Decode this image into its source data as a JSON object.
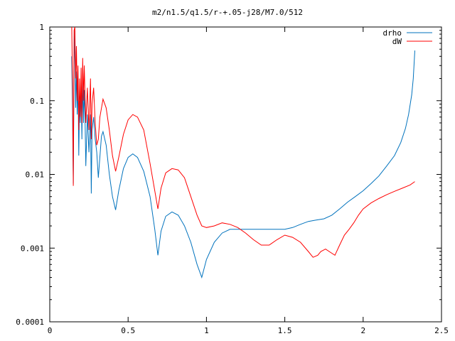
{
  "chart_data": {
    "type": "line",
    "title": "m2/n1.5/q1.5/r-+.05-j28/M7.0/512",
    "xlabel": "",
    "ylabel": "",
    "xlim": [
      0,
      2.5
    ],
    "ylim": [
      0.0001,
      1
    ],
    "yscale": "log",
    "grid": false,
    "legend_position": "top-right",
    "x_ticks": [
      0,
      0.5,
      1,
      1.5,
      2,
      2.5
    ],
    "x_tick_labels": [
      "0",
      "0.5",
      "1",
      "1.5",
      "2",
      "2.5"
    ],
    "y_ticks": [
      0.0001,
      0.001,
      0.01,
      0.1,
      1
    ],
    "y_tick_labels": [
      "0.0001",
      "0.001",
      "0.01",
      "0.1",
      "1"
    ],
    "series": [
      {
        "name": "drho",
        "color": "#0072bd",
        "points": [
          [
            0.14,
            0.4
          ],
          [
            0.145,
            0.07
          ],
          [
            0.15,
            0.0075
          ],
          [
            0.155,
            0.3
          ],
          [
            0.16,
            0.9
          ],
          [
            0.165,
            0.08
          ],
          [
            0.17,
            0.25
          ],
          [
            0.175,
            0.065
          ],
          [
            0.18,
            0.2
          ],
          [
            0.185,
            0.018
          ],
          [
            0.19,
            0.1
          ],
          [
            0.195,
            0.05
          ],
          [
            0.2,
            0.15
          ],
          [
            0.205,
            0.03
          ],
          [
            0.21,
            0.2
          ],
          [
            0.215,
            0.05
          ],
          [
            0.22,
            0.14
          ],
          [
            0.225,
            0.06
          ],
          [
            0.23,
            0.013
          ],
          [
            0.24,
            0.065
          ],
          [
            0.25,
            0.02
          ],
          [
            0.26,
            0.065
          ],
          [
            0.265,
            0.0055
          ],
          [
            0.27,
            0.04
          ],
          [
            0.28,
            0.06
          ],
          [
            0.29,
            0.03
          ],
          [
            0.3,
            0.02
          ],
          [
            0.31,
            0.009
          ],
          [
            0.33,
            0.033
          ],
          [
            0.34,
            0.038
          ],
          [
            0.36,
            0.025
          ],
          [
            0.38,
            0.01
          ],
          [
            0.4,
            0.005
          ],
          [
            0.42,
            0.0033
          ],
          [
            0.44,
            0.006
          ],
          [
            0.47,
            0.012
          ],
          [
            0.5,
            0.017
          ],
          [
            0.53,
            0.019
          ],
          [
            0.56,
            0.017
          ],
          [
            0.6,
            0.011
          ],
          [
            0.64,
            0.005
          ],
          [
            0.67,
            0.0018
          ],
          [
            0.69,
            0.0008
          ],
          [
            0.71,
            0.0017
          ],
          [
            0.74,
            0.0027
          ],
          [
            0.78,
            0.0031
          ],
          [
            0.82,
            0.0028
          ],
          [
            0.86,
            0.002
          ],
          [
            0.9,
            0.0012
          ],
          [
            0.94,
            0.0006
          ],
          [
            0.97,
            0.0004
          ],
          [
            1.0,
            0.0007
          ],
          [
            1.05,
            0.0012
          ],
          [
            1.1,
            0.0016
          ],
          [
            1.15,
            0.0018
          ],
          [
            1.2,
            0.0018
          ],
          [
            1.3,
            0.0018
          ],
          [
            1.4,
            0.0018
          ],
          [
            1.5,
            0.0018
          ],
          [
            1.55,
            0.0019
          ],
          [
            1.6,
            0.0021
          ],
          [
            1.65,
            0.0023
          ],
          [
            1.7,
            0.0024
          ],
          [
            1.75,
            0.0025
          ],
          [
            1.8,
            0.0028
          ],
          [
            1.85,
            0.0034
          ],
          [
            1.9,
            0.0042
          ],
          [
            1.95,
            0.005
          ],
          [
            2.0,
            0.006
          ],
          [
            2.05,
            0.0075
          ],
          [
            2.1,
            0.0095
          ],
          [
            2.15,
            0.013
          ],
          [
            2.2,
            0.018
          ],
          [
            2.24,
            0.027
          ],
          [
            2.27,
            0.042
          ],
          [
            2.29,
            0.065
          ],
          [
            2.31,
            0.12
          ],
          [
            2.32,
            0.2
          ],
          [
            2.33,
            0.48
          ]
        ]
      },
      {
        "name": "dW",
        "color": "#ff0000",
        "points": [
          [
            0.14,
            1.0
          ],
          [
            0.145,
            0.17
          ],
          [
            0.15,
            0.007
          ],
          [
            0.155,
            0.9
          ],
          [
            0.16,
            1.0
          ],
          [
            0.165,
            0.2
          ],
          [
            0.17,
            0.55
          ],
          [
            0.175,
            0.1
          ],
          [
            0.18,
            0.3
          ],
          [
            0.185,
            0.04
          ],
          [
            0.19,
            0.2
          ],
          [
            0.195,
            0.06
          ],
          [
            0.2,
            0.28
          ],
          [
            0.205,
            0.05
          ],
          [
            0.21,
            0.38
          ],
          [
            0.215,
            0.1
          ],
          [
            0.22,
            0.3
          ],
          [
            0.225,
            0.12
          ],
          [
            0.23,
            0.05
          ],
          [
            0.24,
            0.15
          ],
          [
            0.25,
            0.04
          ],
          [
            0.26,
            0.2
          ],
          [
            0.265,
            0.03
          ],
          [
            0.27,
            0.09
          ],
          [
            0.28,
            0.15
          ],
          [
            0.29,
            0.05
          ],
          [
            0.3,
            0.025
          ],
          [
            0.31,
            0.03
          ],
          [
            0.32,
            0.06
          ],
          [
            0.34,
            0.105
          ],
          [
            0.36,
            0.08
          ],
          [
            0.38,
            0.04
          ],
          [
            0.4,
            0.018
          ],
          [
            0.42,
            0.011
          ],
          [
            0.44,
            0.017
          ],
          [
            0.47,
            0.035
          ],
          [
            0.5,
            0.055
          ],
          [
            0.53,
            0.065
          ],
          [
            0.56,
            0.06
          ],
          [
            0.6,
            0.04
          ],
          [
            0.64,
            0.014
          ],
          [
            0.67,
            0.006
          ],
          [
            0.69,
            0.0034
          ],
          [
            0.71,
            0.0065
          ],
          [
            0.74,
            0.0105
          ],
          [
            0.78,
            0.012
          ],
          [
            0.82,
            0.0115
          ],
          [
            0.86,
            0.009
          ],
          [
            0.9,
            0.005
          ],
          [
            0.94,
            0.0028
          ],
          [
            0.97,
            0.002
          ],
          [
            1.0,
            0.0019
          ],
          [
            1.05,
            0.002
          ],
          [
            1.1,
            0.0022
          ],
          [
            1.15,
            0.0021
          ],
          [
            1.2,
            0.0019
          ],
          [
            1.25,
            0.0016
          ],
          [
            1.3,
            0.0013
          ],
          [
            1.35,
            0.0011
          ],
          [
            1.4,
            0.0011
          ],
          [
            1.45,
            0.0013
          ],
          [
            1.5,
            0.0015
          ],
          [
            1.55,
            0.0014
          ],
          [
            1.6,
            0.0012
          ],
          [
            1.65,
            0.0009
          ],
          [
            1.68,
            0.00075
          ],
          [
            1.71,
            0.0008
          ],
          [
            1.73,
            0.0009
          ],
          [
            1.76,
            0.00097
          ],
          [
            1.79,
            0.00088
          ],
          [
            1.82,
            0.0008
          ],
          [
            1.85,
            0.0011
          ],
          [
            1.88,
            0.0015
          ],
          [
            1.91,
            0.0018
          ],
          [
            1.94,
            0.0022
          ],
          [
            1.97,
            0.0028
          ],
          [
            2.0,
            0.0034
          ],
          [
            2.05,
            0.0041
          ],
          [
            2.1,
            0.0047
          ],
          [
            2.15,
            0.0053
          ],
          [
            2.2,
            0.0059
          ],
          [
            2.25,
            0.0065
          ],
          [
            2.3,
            0.0072
          ],
          [
            2.33,
            0.008
          ]
        ]
      }
    ]
  }
}
